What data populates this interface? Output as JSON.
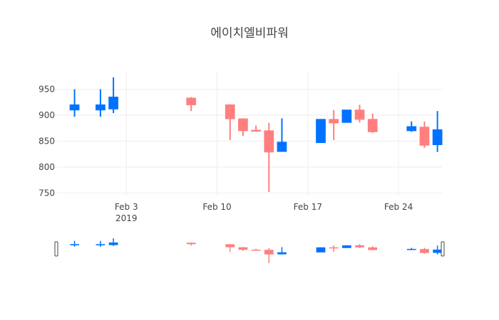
{
  "chart_data": {
    "type": "candlestick",
    "title": "에이치엘비파워",
    "xlabel": "",
    "ylabel": "",
    "ylim": [
      745,
      985
    ],
    "xlim": [
      "2019-01-29",
      "2019-02-27"
    ],
    "x_ticks": [
      {
        "date": "2019-02-03",
        "label": "Feb 3"
      },
      {
        "date": "2019-02-10",
        "label": "Feb 10"
      },
      {
        "date": "2019-02-17",
        "label": "Feb 17"
      },
      {
        "date": "2019-02-24",
        "label": "Feb 24"
      }
    ],
    "x_year_label": "2019",
    "y_ticks": [
      750,
      800,
      850,
      900,
      950
    ],
    "grid": true,
    "legend": "none",
    "rangeslider": true,
    "colors": {
      "increasing": "#ff7f7f",
      "decreasing": "#0072ff",
      "grid": "#eeeeee",
      "tick_text": "#444444"
    },
    "candles": [
      {
        "date": "2019-01-30",
        "open": 920,
        "high": 950,
        "low": 897,
        "close": 910
      },
      {
        "date": "2019-02-01",
        "open": 920,
        "high": 950,
        "low": 897,
        "close": 910
      },
      {
        "date": "2019-02-02",
        "open": 935,
        "high": 973,
        "low": 904,
        "close": 912
      },
      {
        "date": "2019-02-08",
        "open": 920,
        "high": 935,
        "low": 908,
        "close": 933
      },
      {
        "date": "2019-02-11",
        "open": 893,
        "high": 921,
        "low": 852,
        "close": 920
      },
      {
        "date": "2019-02-12",
        "open": 870,
        "high": 894,
        "low": 860,
        "close": 893
      },
      {
        "date": "2019-02-13",
        "open": 869,
        "high": 880,
        "low": 868,
        "close": 871
      },
      {
        "date": "2019-02-14",
        "open": 829,
        "high": 885,
        "low": 752,
        "close": 870
      },
      {
        "date": "2019-02-15",
        "open": 848,
        "high": 894,
        "low": 830,
        "close": 830
      },
      {
        "date": "2019-02-18",
        "open": 892,
        "high": 892,
        "low": 847,
        "close": 847
      },
      {
        "date": "2019-02-19",
        "open": 885,
        "high": 910,
        "low": 852,
        "close": 892
      },
      {
        "date": "2019-02-20",
        "open": 910,
        "high": 910,
        "low": 886,
        "close": 886
      },
      {
        "date": "2019-02-21",
        "open": 892,
        "high": 920,
        "low": 886,
        "close": 910
      },
      {
        "date": "2019-02-22",
        "open": 868,
        "high": 903,
        "low": 866,
        "close": 892
      },
      {
        "date": "2019-02-25",
        "open": 878,
        "high": 888,
        "low": 868,
        "close": 870
      },
      {
        "date": "2019-02-26",
        "open": 842,
        "high": 888,
        "low": 837,
        "close": 877
      },
      {
        "date": "2019-02-27",
        "open": 872,
        "high": 908,
        "low": 829,
        "close": 843
      }
    ]
  }
}
